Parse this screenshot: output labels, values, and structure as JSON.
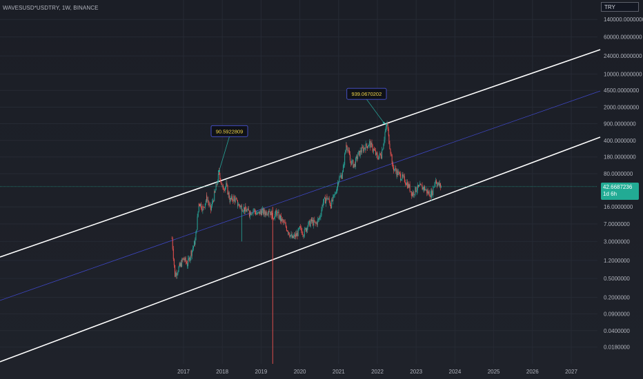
{
  "header": {
    "symbol": "WAVESUSD*USDTRY, 1W, BINANCE",
    "currency": "TRY"
  },
  "last_price": {
    "value": "42.6687236",
    "countdown": "1d 6h"
  },
  "colors": {
    "channel": "#ffffff",
    "midline": "#3f48c8",
    "up": "#26a69a",
    "down": "#ef5350",
    "last_price_line": "#22ab94",
    "annotation_text": "#f5d848"
  },
  "chart_data": {
    "type": "candlestick",
    "yscale": "log",
    "y_ticks": [
      "140000.0000000",
      "60000.0000000",
      "24000.0000000",
      "10000.0000000",
      "4500.0000000",
      "2000.0000000",
      "900.0000000",
      "400.0000000",
      "180.0000000",
      "80.0000000",
      "16.0000000",
      "7.0000000",
      "3.0000000",
      "1.2000000",
      "0.5000000",
      "0.2000000",
      "0.0900000",
      "0.0400000",
      "0.0180000"
    ],
    "x_ticks": [
      "2017",
      "2018",
      "2019",
      "2020",
      "2021",
      "2022",
      "2023",
      "2024",
      "2025",
      "2026",
      "2027"
    ],
    "annotations": [
      {
        "label": "90.5922809",
        "date": "2017-12",
        "value": 90.59
      },
      {
        "label": "939.0670202",
        "date": "2022-03",
        "value": 939.07
      }
    ],
    "series": [
      {
        "points": [
          {
            "t": 2016.7,
            "v": 3.5
          },
          {
            "t": 2016.78,
            "v": 0.6
          },
          {
            "t": 2016.9,
            "v": 0.9
          },
          {
            "t": 2017.0,
            "v": 1.3
          },
          {
            "t": 2017.1,
            "v": 1.0
          },
          {
            "t": 2017.2,
            "v": 1.8
          },
          {
            "t": 2017.3,
            "v": 3.0
          },
          {
            "t": 2017.4,
            "v": 20.0
          },
          {
            "t": 2017.5,
            "v": 15.0
          },
          {
            "t": 2017.6,
            "v": 25.0
          },
          {
            "t": 2017.7,
            "v": 14.0
          },
          {
            "t": 2017.8,
            "v": 30.0
          },
          {
            "t": 2017.92,
            "v": 85.0
          },
          {
            "t": 2018.0,
            "v": 40.0
          },
          {
            "t": 2018.1,
            "v": 45.0
          },
          {
            "t": 2018.2,
            "v": 22.0
          },
          {
            "t": 2018.3,
            "v": 25.0
          },
          {
            "t": 2018.4,
            "v": 18.0
          },
          {
            "t": 2018.5,
            "v": 16.0
          },
          {
            "t": 2018.6,
            "v": 14.0
          },
          {
            "t": 2018.7,
            "v": 12.0
          },
          {
            "t": 2018.8,
            "v": 14.0
          },
          {
            "t": 2018.9,
            "v": 11.0
          },
          {
            "t": 2019.0,
            "v": 13.0
          },
          {
            "t": 2019.1,
            "v": 12.0
          },
          {
            "t": 2019.2,
            "v": 14.0
          },
          {
            "t": 2019.3,
            "v": 10.0
          },
          {
            "t": 2019.4,
            "v": 12.0
          },
          {
            "t": 2019.5,
            "v": 9.0
          },
          {
            "t": 2019.6,
            "v": 7.0
          },
          {
            "t": 2019.7,
            "v": 5.0
          },
          {
            "t": 2019.8,
            "v": 3.5
          },
          {
            "t": 2019.9,
            "v": 4.0
          },
          {
            "t": 2020.0,
            "v": 5.5
          },
          {
            "t": 2020.1,
            "v": 4.5
          },
          {
            "t": 2020.2,
            "v": 6.5
          },
          {
            "t": 2020.3,
            "v": 8.0
          },
          {
            "t": 2020.4,
            "v": 7.0
          },
          {
            "t": 2020.5,
            "v": 9.0
          },
          {
            "t": 2020.6,
            "v": 20.0
          },
          {
            "t": 2020.7,
            "v": 25.0
          },
          {
            "t": 2020.8,
            "v": 18.0
          },
          {
            "t": 2020.9,
            "v": 28.0
          },
          {
            "t": 2021.0,
            "v": 60.0
          },
          {
            "t": 2021.1,
            "v": 80.0
          },
          {
            "t": 2021.2,
            "v": 350.0
          },
          {
            "t": 2021.3,
            "v": 150.0
          },
          {
            "t": 2021.4,
            "v": 120.0
          },
          {
            "t": 2021.5,
            "v": 200.0
          },
          {
            "t": 2021.6,
            "v": 250.0
          },
          {
            "t": 2021.7,
            "v": 300.0
          },
          {
            "t": 2021.8,
            "v": 350.0
          },
          {
            "t": 2021.9,
            "v": 250.0
          },
          {
            "t": 2022.0,
            "v": 180.0
          },
          {
            "t": 2022.1,
            "v": 200.0
          },
          {
            "t": 2022.2,
            "v": 600.0
          },
          {
            "t": 2022.25,
            "v": 900.0
          },
          {
            "t": 2022.3,
            "v": 400.0
          },
          {
            "t": 2022.4,
            "v": 110.0
          },
          {
            "t": 2022.5,
            "v": 85.0
          },
          {
            "t": 2022.6,
            "v": 70.0
          },
          {
            "t": 2022.7,
            "v": 60.0
          },
          {
            "t": 2022.8,
            "v": 45.0
          },
          {
            "t": 2022.9,
            "v": 30.0
          },
          {
            "t": 2023.0,
            "v": 38.0
          },
          {
            "t": 2023.1,
            "v": 42.0
          },
          {
            "t": 2023.2,
            "v": 40.0
          },
          {
            "t": 2023.3,
            "v": 32.0
          },
          {
            "t": 2023.4,
            "v": 30.0
          },
          {
            "t": 2023.5,
            "v": 60.0
          },
          {
            "t": 2023.55,
            "v": 48.0
          },
          {
            "t": 2023.65,
            "v": 42.7
          }
        ]
      }
    ]
  }
}
